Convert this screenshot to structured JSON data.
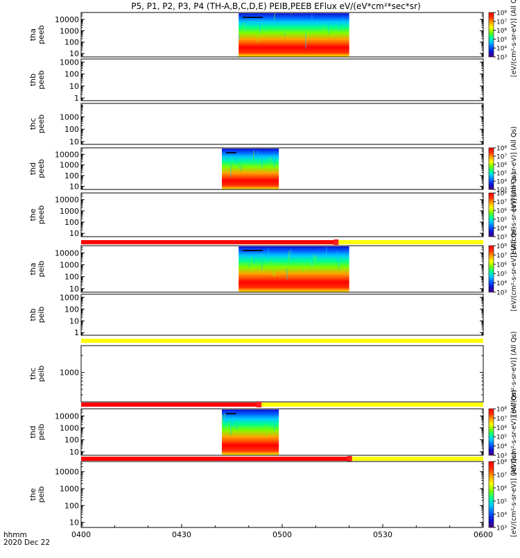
{
  "chart_data": {
    "type": "heatmap",
    "title": "P5, P1, P2, P3, P4 (TH-A,B,C,D,E) PEIB,PEEB EFlux eV/(eV*cm²*sec*sr)",
    "x_axis": {
      "ticks": [
        "0400",
        "0430",
        "0500",
        "0530",
        "0600"
      ],
      "range": [
        "04:00",
        "06:00"
      ],
      "label_lines": [
        "hhmm",
        "2020 Dec 22"
      ]
    },
    "colorbar": {
      "ticks": [
        "10³",
        "10⁴",
        "10⁵",
        "10⁶",
        "10⁷",
        "10⁸"
      ],
      "range_exp": [
        3,
        8
      ],
      "scale": "log"
    },
    "panels": [
      {
        "id": "tha_peeb",
        "ylabel": [
          "tha",
          "peeb"
        ],
        "yticks": [
          "10",
          "100",
          "1000",
          "10000"
        ],
        "ylog": true,
        "ylim": [
          5,
          40000
        ],
        "data": [
          {
            "start": "04:47",
            "end": "05:20"
          }
        ],
        "colorbar": true,
        "colorbar_label": "[eV/(cm²-s-sr-eV)] (All Qs)"
      },
      {
        "id": "thb_peeb",
        "ylabel": [
          "thb",
          "peeb"
        ],
        "yticks": [
          "1",
          "10",
          "100",
          "1000"
        ],
        "ylog": true,
        "ylim": [
          0.6,
          1800
        ],
        "data": [],
        "colorbar": false,
        "colorbar_label": ""
      },
      {
        "id": "thc_peeb",
        "ylabel": [
          "thc",
          "peeb"
        ],
        "yticks": [
          "10",
          "100",
          "1000"
        ],
        "ylog": true,
        "ylim": [
          6,
          12000
        ],
        "data": [],
        "colorbar": false,
        "colorbar_label": ""
      },
      {
        "id": "thd_peeb",
        "ylabel": [
          "thd",
          "peeb"
        ],
        "yticks": [
          "10",
          "100",
          "1000",
          "10000"
        ],
        "ylog": true,
        "ylim": [
          5,
          40000
        ],
        "data": [
          {
            "start": "04:42",
            "end": "04:59"
          }
        ],
        "colorbar": true,
        "colorbar_label": "[eV/(cm²-s-sr-eV)] (All Qs)"
      },
      {
        "id": "the_peeb",
        "ylabel": [
          "the",
          "peeb"
        ],
        "yticks": [
          "10",
          "100",
          "1000",
          "10000"
        ],
        "ylog": true,
        "ylim": [
          5,
          40000
        ],
        "data": [],
        "colorbar": true,
        "colorbar_label": "[eV/(cm²-s-sr-eV)] (All Qs)",
        "status_bar": {
          "red_end": "05:16",
          "red_ends_in_marker": true
        }
      },
      {
        "id": "tha_peib",
        "ylabel": [
          "tha",
          "peib"
        ],
        "yticks": [
          "10",
          "100",
          "1000",
          "10000"
        ],
        "ylog": true,
        "ylim": [
          5,
          40000
        ],
        "data": [
          {
            "start": "04:47",
            "end": "05:20"
          }
        ],
        "colorbar": true,
        "colorbar_label": "[eV/(cm²-s-sr-eV)] (All Qs)"
      },
      {
        "id": "thb_peib",
        "ylabel": [
          "thb",
          "peib"
        ],
        "yticks": [
          "1",
          "10",
          "100",
          "1000"
        ],
        "ylog": true,
        "ylim": [
          0.6,
          1800
        ],
        "data": [],
        "colorbar": false,
        "colorbar_label": "",
        "status_bar": {
          "red_end": null,
          "red_ends_in_marker": false
        }
      },
      {
        "id": "thc_peib",
        "ylabel": [
          "thc",
          "peib"
        ],
        "yticks": [
          "1000"
        ],
        "ylog": true,
        "ylim": [
          300,
          3000
        ],
        "data": [],
        "colorbar": false,
        "colorbar_label": "[eV/(cm²-s-sr-eV)] (All Qs)",
        "status_bar": {
          "red_end": "04:53",
          "red_ends_in_marker": true
        }
      },
      {
        "id": "thd_peib",
        "ylabel": [
          "thd",
          "peib"
        ],
        "yticks": [
          "10",
          "100",
          "1000",
          "10000"
        ],
        "ylog": true,
        "ylim": [
          5,
          40000
        ],
        "data": [
          {
            "start": "04:42",
            "end": "04:59"
          }
        ],
        "colorbar": true,
        "colorbar_label": "[eV/(cm²-s-sr-eV)] (All Qs)",
        "status_bar": {
          "red_end": "05:20",
          "red_ends_in_marker": true
        }
      },
      {
        "id": "the_peib",
        "ylabel": [
          "the",
          "peib"
        ],
        "yticks": [
          "10",
          "100",
          "1000",
          "10000"
        ],
        "ylog": true,
        "ylim": [
          5,
          40000
        ],
        "data": [],
        "colorbar": true,
        "colorbar_label": "[eV/(cm²-s-sr-eV)] (All Qs)"
      }
    ],
    "status_colors": {
      "red": "#ff0000",
      "yellow": "#ffff00",
      "marker": "#ff2020"
    },
    "colormap": [
      "#4b0082",
      "#1010d0",
      "#0060ff",
      "#00c8ff",
      "#00ff90",
      "#7aff00",
      "#ffff00",
      "#ffa000",
      "#ff3000",
      "#ff0000"
    ]
  }
}
